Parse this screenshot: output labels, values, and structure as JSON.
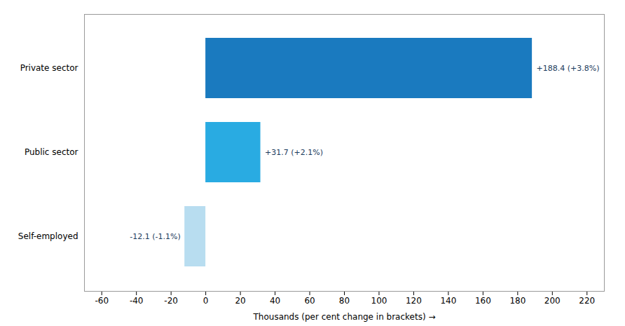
{
  "chart_data": {
    "type": "bar",
    "orientation": "horizontal",
    "categories": [
      "Private sector",
      "Public sector",
      "Self-employed"
    ],
    "values": [
      188.4,
      31.7,
      -12.1
    ],
    "colors": [
      "#1a7abf",
      "#29abe2",
      "#b8ddf0"
    ],
    "data_labels": true,
    "value_labels": [
      "+188.4 (+3.8%)",
      "+31.7 (+2.1%)",
      "-12.1 (-1.1%)"
    ],
    "xlabel": "Thousands (per cent change in brackets)",
    "xlim": [
      -70,
      230
    ],
    "xticks": [
      -60,
      -40,
      -20,
      0,
      20,
      40,
      60,
      80,
      100,
      120,
      140,
      160,
      180,
      200,
      220
    ],
    "grid": false
  }
}
